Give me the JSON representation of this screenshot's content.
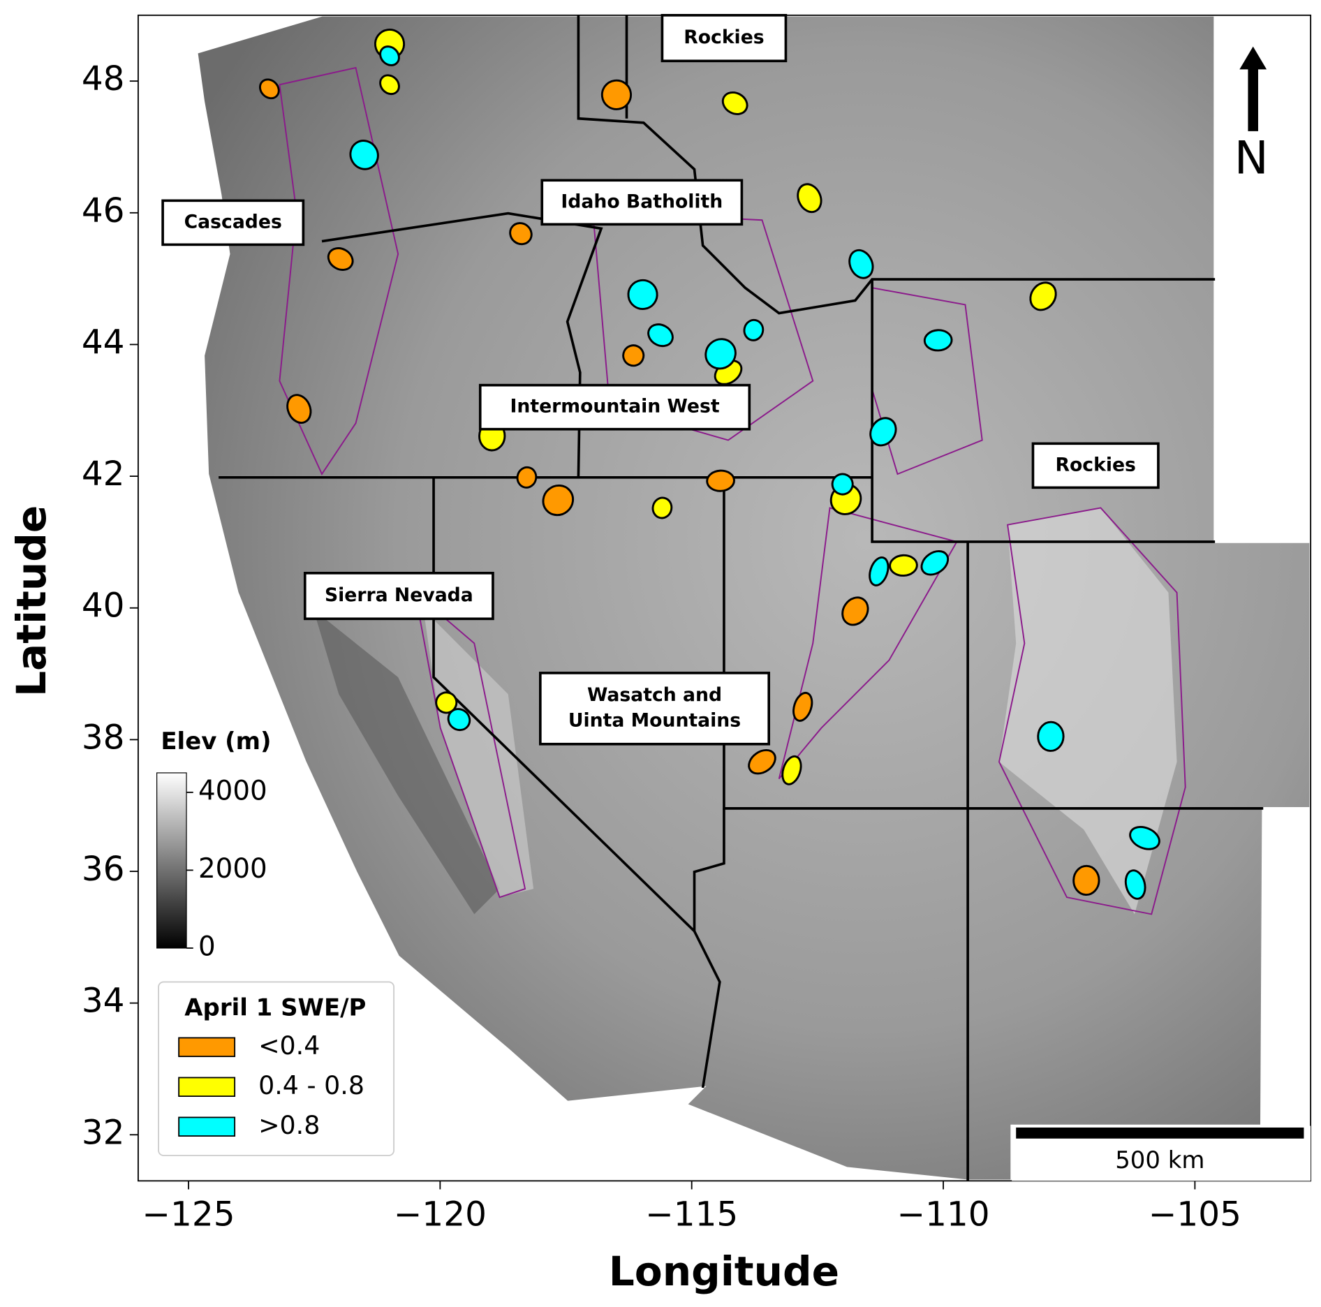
{
  "chart_data": {
    "type": "map",
    "xlabel": "Longitude",
    "ylabel": "Latitude",
    "xlim": [
      -126,
      -102.7
    ],
    "ylim": [
      31.3,
      49
    ],
    "xticks": [
      {
        "value": -125,
        "label": "−125"
      },
      {
        "value": -120,
        "label": "−120"
      },
      {
        "value": -115,
        "label": "−115"
      },
      {
        "value": -110,
        "label": "−110"
      },
      {
        "value": -105,
        "label": "−105"
      }
    ],
    "yticks": [
      32,
      34,
      36,
      38,
      40,
      42,
      44,
      46,
      48
    ],
    "colorbar": {
      "title": "Elev (m)",
      "lim": [
        0,
        4500
      ],
      "ticks": [
        0,
        2000,
        4000
      ]
    },
    "legend": {
      "title": "April 1 SWE/P",
      "entries": [
        {
          "name": "<0.4",
          "color": "#ff9900"
        },
        {
          "name": "0.4 - 0.8",
          "color": "#ffff00"
        },
        {
          "name": ">0.8",
          "color": "#00ffff"
        }
      ]
    },
    "regions": [
      "Cascades",
      "Rockies",
      "Idaho Batholith",
      "Intermountain West",
      "Rockies",
      "Sierra Nevada",
      [
        "Wasatch and",
        "Uinta Mountains"
      ]
    ],
    "scale_bar": "500 km",
    "north": "N"
  }
}
